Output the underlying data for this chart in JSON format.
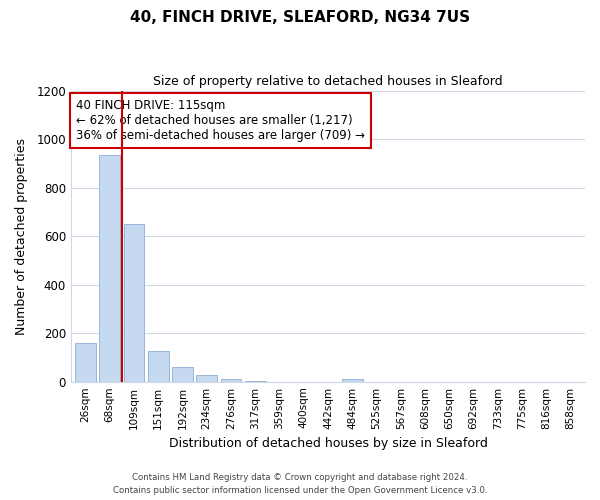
{
  "title": "40, FINCH DRIVE, SLEAFORD, NG34 7US",
  "subtitle": "Size of property relative to detached houses in Sleaford",
  "xlabel": "Distribution of detached houses by size in Sleaford",
  "ylabel": "Number of detached properties",
  "bar_labels": [
    "26sqm",
    "68sqm",
    "109sqm",
    "151sqm",
    "192sqm",
    "234sqm",
    "276sqm",
    "317sqm",
    "359sqm",
    "400sqm",
    "442sqm",
    "484sqm",
    "525sqm",
    "567sqm",
    "608sqm",
    "650sqm",
    "692sqm",
    "733sqm",
    "775sqm",
    "816sqm",
    "858sqm"
  ],
  "bar_values": [
    160,
    935,
    650,
    125,
    62,
    28,
    12,
    2,
    0,
    0,
    0,
    10,
    0,
    0,
    0,
    0,
    0,
    0,
    0,
    0,
    0
  ],
  "bar_color_normal": "#c5d9f0",
  "bar_edgecolor": "#9ab5d9",
  "property_line_x": 1.5,
  "property_line_color": "#cc0000",
  "annotation_title": "40 FINCH DRIVE: 115sqm",
  "annotation_line1": "← 62% of detached houses are smaller (1,217)",
  "annotation_line2": "36% of semi-detached houses are larger (709) →",
  "annotation_box_color": "#ffffff",
  "annotation_border_color": "#cc0000",
  "ylim": [
    0,
    1200
  ],
  "yticks": [
    0,
    200,
    400,
    600,
    800,
    1000,
    1200
  ],
  "footer1": "Contains HM Land Registry data © Crown copyright and database right 2024.",
  "footer2": "Contains public sector information licensed under the Open Government Licence v3.0.",
  "background_color": "#ffffff",
  "grid_color": "#d0d8e8"
}
